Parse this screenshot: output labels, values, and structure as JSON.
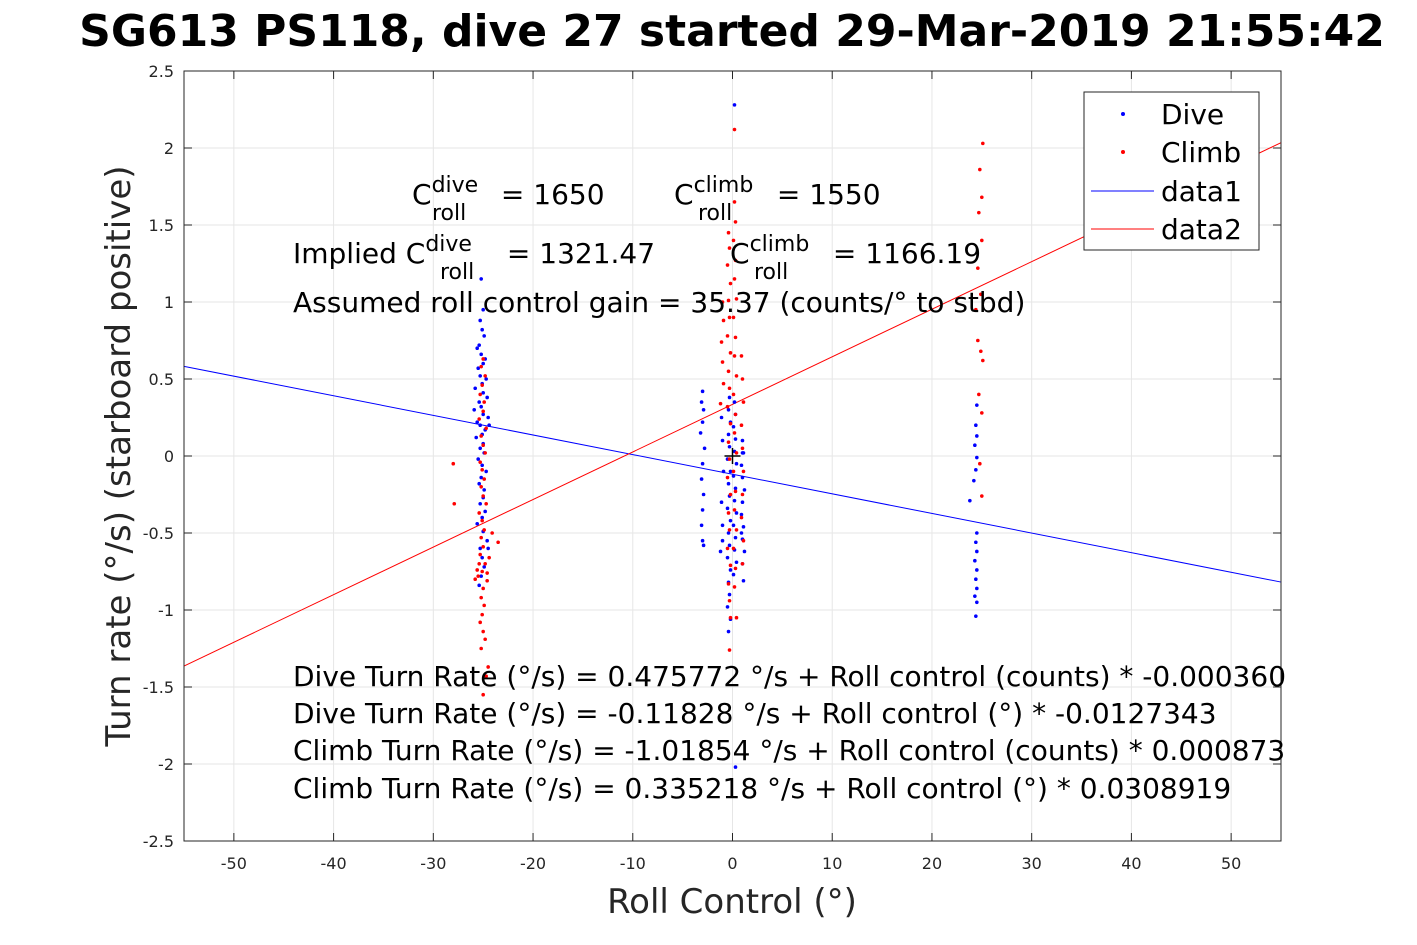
{
  "chart_data": {
    "type": "scatter",
    "title": "SG613 PS118, dive 27 started 29-Mar-2019 21:55:42",
    "xlabel": "Roll Control (°)",
    "ylabel": "Turn rate (°/s) (starboard positive)",
    "xlim": [
      -55,
      55
    ],
    "ylim": [
      -2.5,
      2.5
    ],
    "x_ticks": [
      "-50",
      "-40",
      "-30",
      "-20",
      "-10",
      "0",
      "10",
      "20",
      "30",
      "40",
      "50"
    ],
    "y_ticks": [
      "2.5",
      "2",
      "1.5",
      "1",
      "0.5",
      "0",
      "-0.5",
      "-1",
      "-1.5",
      "-2",
      "-2.5"
    ],
    "grid": true,
    "legend_position": "top-right",
    "legend": [
      "Dive",
      "Climb",
      "data1",
      "data2"
    ],
    "colors": {
      "dive": "#0000ff",
      "climb": "#ff0000",
      "axis": "#262626",
      "grid": "#e6e6e6"
    },
    "series": [
      {
        "name": "Dive",
        "kind": "points",
        "color": "#0000ff",
        "points": [
          [
            -25.2,
            1.15
          ],
          [
            -25.0,
            0.95
          ],
          [
            -25.3,
            0.88
          ],
          [
            -25.1,
            0.82
          ],
          [
            -24.9,
            0.78
          ],
          [
            -25.4,
            0.72
          ],
          [
            -25.6,
            0.7
          ],
          [
            -25.2,
            0.66
          ],
          [
            -24.8,
            0.63
          ],
          [
            -25.0,
            0.6
          ],
          [
            -25.5,
            0.57
          ],
          [
            -25.3,
            0.52
          ],
          [
            -24.7,
            0.5
          ],
          [
            -25.1,
            0.47
          ],
          [
            -25.8,
            0.44
          ],
          [
            -25.0,
            0.41
          ],
          [
            -24.6,
            0.38
          ],
          [
            -25.4,
            0.35
          ],
          [
            -25.2,
            0.32
          ],
          [
            -25.9,
            0.3
          ],
          [
            -25.0,
            0.27
          ],
          [
            -24.5,
            0.25
          ],
          [
            -25.6,
            0.22
          ],
          [
            -25.3,
            0.2
          ],
          [
            -24.8,
            0.17
          ],
          [
            -25.1,
            0.14
          ],
          [
            -25.7,
            0.12
          ],
          [
            -24.4,
            0.2
          ],
          [
            -25.0,
            0.08
          ],
          [
            -25.3,
            0.05
          ],
          [
            -24.9,
            0.02
          ],
          [
            -25.5,
            -0.02
          ],
          [
            -25.1,
            -0.06
          ],
          [
            -24.7,
            -0.1
          ],
          [
            -25.2,
            -0.14
          ],
          [
            -25.4,
            -0.18
          ],
          [
            -24.9,
            -0.22
          ],
          [
            -25.0,
            -0.27
          ],
          [
            -25.3,
            -0.31
          ],
          [
            -24.8,
            -0.36
          ],
          [
            -25.1,
            -0.4
          ],
          [
            -25.6,
            -0.44
          ],
          [
            -25.0,
            -0.49
          ],
          [
            -24.6,
            -0.55
          ],
          [
            -25.3,
            -0.6
          ],
          [
            -25.1,
            -0.66
          ],
          [
            -24.9,
            -0.72
          ],
          [
            -25.2,
            -0.78
          ],
          [
            -24.5,
            -0.6
          ],
          [
            -25.4,
            -0.84
          ],
          [
            -3.0,
            0.42
          ],
          [
            -3.1,
            0.35
          ],
          [
            -2.9,
            0.3
          ],
          [
            -3.0,
            0.22
          ],
          [
            -3.2,
            0.15
          ],
          [
            -2.8,
            0.05
          ],
          [
            -3.0,
            -0.05
          ],
          [
            -3.1,
            -0.15
          ],
          [
            -2.9,
            -0.25
          ],
          [
            -3.0,
            -0.35
          ],
          [
            -3.1,
            -0.45
          ],
          [
            -3.0,
            -0.55
          ],
          [
            -2.9,
            -0.58
          ],
          [
            -1.0,
            -0.55
          ],
          [
            -1.2,
            -0.62
          ],
          [
            -1.0,
            -0.45
          ],
          [
            -1.1,
            -0.3
          ],
          [
            -0.9,
            -0.1
          ],
          [
            -1.0,
            0.1
          ],
          [
            -1.1,
            0.25
          ],
          [
            -0.3,
            0.38
          ],
          [
            -0.4,
            0.3
          ],
          [
            -0.2,
            0.22
          ],
          [
            -0.4,
            0.14
          ],
          [
            -0.3,
            0.06
          ],
          [
            -0.5,
            -0.02
          ],
          [
            -0.2,
            -0.1
          ],
          [
            -0.4,
            -0.18
          ],
          [
            -0.3,
            -0.26
          ],
          [
            -0.5,
            -0.34
          ],
          [
            -0.2,
            -0.42
          ],
          [
            -0.4,
            -0.5
          ],
          [
            -0.3,
            -0.58
          ],
          [
            -0.5,
            -0.66
          ],
          [
            -0.2,
            -0.74
          ],
          [
            -0.4,
            -0.82
          ],
          [
            -0.3,
            -0.9
          ],
          [
            -0.5,
            -0.98
          ],
          [
            -0.2,
            -1.06
          ],
          [
            -0.4,
            -1.14
          ],
          [
            0.2,
            0.35
          ],
          [
            0.3,
            0.27
          ],
          [
            0.1,
            0.19
          ],
          [
            0.3,
            0.11
          ],
          [
            0.2,
            0.03
          ],
          [
            0.4,
            -0.05
          ],
          [
            0.1,
            -0.13
          ],
          [
            0.3,
            -0.21
          ],
          [
            0.2,
            -0.29
          ],
          [
            0.4,
            -0.37
          ],
          [
            0.1,
            -0.45
          ],
          [
            0.3,
            -0.53
          ],
          [
            0.2,
            -0.61
          ],
          [
            0.4,
            -0.69
          ],
          [
            0.1,
            -0.77
          ],
          [
            0.2,
            2.28
          ],
          [
            0.3,
            -2.02
          ],
          [
            1.0,
            0.1
          ],
          [
            1.1,
            0.02
          ],
          [
            0.9,
            -0.06
          ],
          [
            1.0,
            -0.14
          ],
          [
            1.2,
            -0.22
          ],
          [
            1.0,
            -0.3
          ],
          [
            0.9,
            -0.38
          ],
          [
            1.1,
            -0.46
          ],
          [
            1.0,
            -0.54
          ],
          [
            1.2,
            -0.62
          ],
          [
            1.0,
            -0.7
          ],
          [
            1.1,
            -0.81
          ],
          [
            0.9,
            -0.5
          ],
          [
            1.0,
            0.02
          ],
          [
            24.5,
            0.33
          ],
          [
            24.4,
            0.2
          ],
          [
            24.5,
            0.13
          ],
          [
            24.3,
            0.07
          ],
          [
            24.5,
            -0.01
          ],
          [
            24.4,
            -0.09
          ],
          [
            24.2,
            -0.16
          ],
          [
            23.8,
            -0.29
          ],
          [
            24.5,
            -0.5
          ],
          [
            24.4,
            -0.56
          ],
          [
            24.5,
            -0.62
          ],
          [
            24.3,
            -0.68
          ],
          [
            24.5,
            -0.74
          ],
          [
            24.4,
            -0.8
          ],
          [
            24.5,
            -0.86
          ],
          [
            24.3,
            -0.91
          ],
          [
            24.5,
            -0.95
          ],
          [
            24.4,
            -1.04
          ]
        ]
      },
      {
        "name": "Climb",
        "kind": "points",
        "color": "#ff0000",
        "points": [
          [
            -28.0,
            -0.05
          ],
          [
            -27.9,
            -0.31
          ],
          [
            -23.5,
            -0.56
          ],
          [
            -24.1,
            -0.5
          ],
          [
            -25.0,
            0.63
          ],
          [
            -25.2,
            0.58
          ],
          [
            -24.8,
            0.52
          ],
          [
            -25.1,
            0.46
          ],
          [
            -25.3,
            0.4
          ],
          [
            -24.9,
            0.35
          ],
          [
            -25.0,
            0.29
          ],
          [
            -25.4,
            0.24
          ],
          [
            -24.7,
            0.18
          ],
          [
            -25.2,
            0.13
          ],
          [
            -25.0,
            0.07
          ],
          [
            -24.8,
            0.02
          ],
          [
            -25.3,
            -0.04
          ],
          [
            -25.1,
            -0.09
          ],
          [
            -24.9,
            -0.15
          ],
          [
            -25.2,
            -0.2
          ],
          [
            -25.0,
            -0.26
          ],
          [
            -24.7,
            -0.31
          ],
          [
            -25.4,
            -0.37
          ],
          [
            -25.1,
            -0.42
          ],
          [
            -24.9,
            -0.48
          ],
          [
            -25.2,
            -0.53
          ],
          [
            -25.0,
            -0.59
          ],
          [
            -25.3,
            -0.64
          ],
          [
            -24.8,
            -0.7
          ],
          [
            -25.1,
            -0.75
          ],
          [
            -25.5,
            -0.78
          ],
          [
            -24.6,
            -0.81
          ],
          [
            -25.0,
            -0.86
          ],
          [
            -25.2,
            -0.92
          ],
          [
            -24.9,
            -0.97
          ],
          [
            -25.1,
            -1.03
          ],
          [
            -25.3,
            -1.08
          ],
          [
            -25.0,
            -1.14
          ],
          [
            -24.8,
            -1.19
          ],
          [
            -25.2,
            -1.25
          ],
          [
            -24.5,
            -1.37
          ],
          [
            -24.7,
            -1.43
          ],
          [
            -25.0,
            -1.55
          ],
          [
            -25.4,
            -0.7
          ],
          [
            -25.6,
            -0.74
          ],
          [
            -24.6,
            -0.76
          ],
          [
            -25.8,
            -0.8
          ],
          [
            -24.4,
            -0.66
          ],
          [
            -1.0,
            1.0
          ],
          [
            -0.9,
            0.88
          ],
          [
            -1.1,
            0.74
          ],
          [
            -1.0,
            0.61
          ],
          [
            -0.9,
            0.47
          ],
          [
            -1.2,
            0.34
          ],
          [
            -0.4,
            1.45
          ],
          [
            -0.3,
            1.35
          ],
          [
            -0.5,
            1.24
          ],
          [
            -0.2,
            1.12
          ],
          [
            -0.4,
            1.01
          ],
          [
            -0.3,
            0.9
          ],
          [
            -0.5,
            0.78
          ],
          [
            -0.2,
            0.67
          ],
          [
            -0.4,
            0.55
          ],
          [
            -0.3,
            0.44
          ],
          [
            -0.5,
            0.32
          ],
          [
            -0.2,
            0.21
          ],
          [
            -0.4,
            0.09
          ],
          [
            -0.3,
            -0.02
          ],
          [
            -0.5,
            -0.14
          ],
          [
            -0.2,
            -0.25
          ],
          [
            -0.4,
            -0.37
          ],
          [
            -0.3,
            -0.48
          ],
          [
            -0.5,
            -0.6
          ],
          [
            -0.2,
            -0.71
          ],
          [
            -0.4,
            -0.83
          ],
          [
            -0.3,
            -0.94
          ],
          [
            -0.2,
            -1.05
          ],
          [
            -0.3,
            -1.26
          ],
          [
            0.2,
            1.65
          ],
          [
            0.3,
            1.52
          ],
          [
            0.1,
            1.4
          ],
          [
            0.3,
            1.27
          ],
          [
            0.2,
            1.15
          ],
          [
            0.4,
            1.02
          ],
          [
            0.1,
            0.9
          ],
          [
            0.3,
            0.77
          ],
          [
            0.2,
            0.65
          ],
          [
            0.4,
            0.52
          ],
          [
            0.1,
            0.4
          ],
          [
            0.3,
            0.27
          ],
          [
            0.2,
            0.15
          ],
          [
            0.4,
            0.02
          ],
          [
            0.1,
            -0.1
          ],
          [
            0.3,
            -0.23
          ],
          [
            0.2,
            -0.35
          ],
          [
            0.4,
            -0.48
          ],
          [
            0.1,
            -0.6
          ],
          [
            0.3,
            -0.73
          ],
          [
            0.2,
            -0.85
          ],
          [
            0.2,
            2.12
          ],
          [
            0.4,
            -1.05
          ],
          [
            0.9,
            0.65
          ],
          [
            1.0,
            0.5
          ],
          [
            1.1,
            0.35
          ],
          [
            0.9,
            0.2
          ],
          [
            1.0,
            0.05
          ],
          [
            1.1,
            -0.1
          ],
          [
            1.0,
            -0.25
          ],
          [
            0.9,
            -0.4
          ],
          [
            1.1,
            -0.55
          ],
          [
            1.0,
            -0.7
          ],
          [
            24.8,
            1.86
          ],
          [
            25.0,
            1.68
          ],
          [
            25.1,
            2.03
          ],
          [
            24.7,
            1.58
          ],
          [
            25.0,
            1.4
          ],
          [
            24.6,
            1.22
          ],
          [
            24.9,
            1.05
          ],
          [
            24.4,
            0.95
          ],
          [
            24.6,
            0.75
          ],
          [
            24.9,
            0.68
          ],
          [
            25.1,
            0.62
          ],
          [
            24.7,
            0.4
          ],
          [
            25.0,
            0.28
          ],
          [
            24.8,
            -0.05
          ],
          [
            25.0,
            -0.26
          ]
        ]
      },
      {
        "name": "data1",
        "kind": "line",
        "color": "#0000ff",
        "x": [
          -55,
          55
        ],
        "y": [
          0.5821,
          -0.8186
        ]
      },
      {
        "name": "data2",
        "kind": "line",
        "color": "#ff0000",
        "x": [
          -55,
          55
        ],
        "y": [
          -1.3638,
          2.0343
        ]
      }
    ],
    "marker": {
      "x": 0,
      "y": 0,
      "symbol": "+",
      "color": "#000000"
    },
    "annotations": {
      "c_dive_base": "C",
      "c_dive_sup": "dive",
      "c_dive_sub": "roll",
      "c_dive_value": " = 1650",
      "c_climb_base": "C",
      "c_climb_sup": "climb",
      "c_climb_sub": "roll",
      "c_climb_value": " = 1550",
      "implied_prefix": "Implied C",
      "implied_dive_sup": "dive",
      "implied_dive_sub": "roll",
      "implied_dive_value": " = 1321.47",
      "implied_climb_base": "C",
      "implied_climb_sup": "climb",
      "implied_climb_sub": "roll",
      "implied_climb_value": " = 1166.19",
      "gain": "Assumed roll control gain = 35.37 (counts/° to stbd)",
      "eq1": "Dive Turn Rate (°/s) = 0.475772 °/s + Roll control (counts) * -0.000360",
      "eq2": "Dive Turn Rate (°/s) = -0.11828 °/s + Roll control (°) * -0.0127343",
      "eq3": "Climb Turn Rate (°/s) = -1.01854 °/s + Roll control (counts) * 0.000873",
      "eq4": "Climb Turn Rate (°/s) = 0.335218 °/s + Roll control (°) * 0.0308919"
    }
  }
}
